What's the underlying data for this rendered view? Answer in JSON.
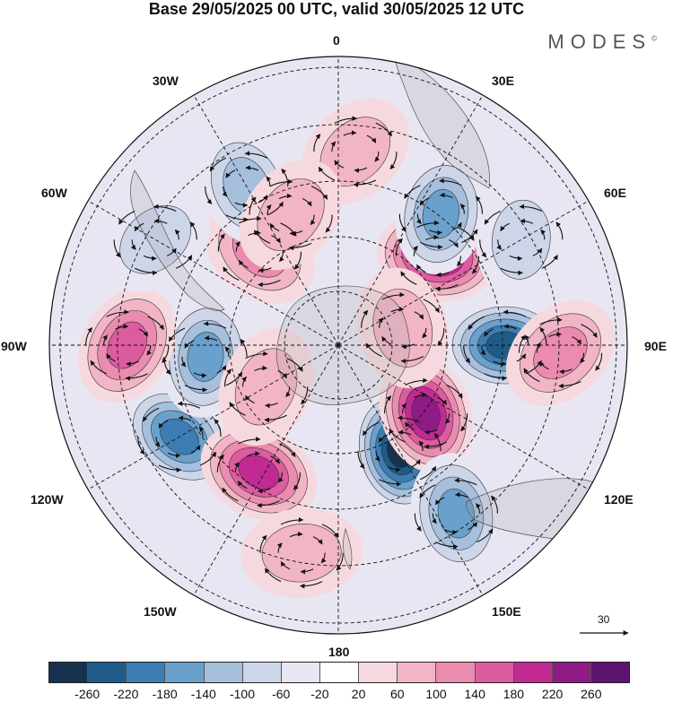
{
  "title": "Base 29/05/2025 00 UTC, valid 30/05/2025 12 UTC",
  "brand": "MODES",
  "brand_mark": "©",
  "longitude_labels": {
    "top": "0",
    "top_right": "30E",
    "right_top": "60E",
    "right": "90E",
    "right_bottom": "120E",
    "bottom_right": "150E",
    "bottom": "180",
    "bottom_left": "150W",
    "left_bottom": "120W",
    "left": "90W",
    "left_top": "60W",
    "top_left": "30W"
  },
  "vector_scale_label": "30",
  "colorbar": {
    "colors": [
      "#17324f",
      "#1f5b88",
      "#3c7db4",
      "#6aa0cc",
      "#a5bfdd",
      "#cdd5e9",
      "#e7e6f2",
      "#ffffff",
      "#f6d9de",
      "#f1b5c6",
      "#eb8bb0",
      "#dd5ca0",
      "#c02a92",
      "#8e1b86",
      "#5b1470"
    ],
    "tick_labels": [
      "-260",
      "-220",
      "-180",
      "-140",
      "-100",
      "-60",
      "-20",
      "20",
      "60",
      "100",
      "140",
      "180",
      "220",
      "260"
    ]
  },
  "field_centers": [
    {
      "lon": 90,
      "colat": 30,
      "value": -230
    },
    {
      "lon": 150,
      "colat": 22,
      "value": -260
    },
    {
      "lon": 128,
      "colat": 20,
      "value": 240
    },
    {
      "lon": 48,
      "colat": 24,
      "value": 220
    },
    {
      "lon": -120,
      "colat": 33,
      "value": -190
    },
    {
      "lon": -148,
      "colat": 27,
      "value": 210
    },
    {
      "lon": -95,
      "colat": 24,
      "value": -170
    },
    {
      "lon": -90,
      "colat": 38,
      "value": 150
    },
    {
      "lon": 92,
      "colat": 40,
      "value": 110
    },
    {
      "lon": 38,
      "colat": 30,
      "value": -150
    },
    {
      "lon": -40,
      "colat": 22,
      "value": 110
    },
    {
      "lon": -30,
      "colat": 33,
      "value": -120
    },
    {
      "lon": 145,
      "colat": 37,
      "value": -170
    },
    {
      "lon": 5,
      "colat": 35,
      "value": 70
    },
    {
      "lon": -20,
      "colat": 25,
      "value": 60
    },
    {
      "lon": -170,
      "colat": 38,
      "value": 90
    },
    {
      "lon": 75,
      "colat": 12,
      "value": 60
    },
    {
      "lon": -60,
      "colat": 38,
      "value": -60
    },
    {
      "lon": 60,
      "colat": 38,
      "value": -80
    },
    {
      "lon": -120,
      "colat": 15,
      "value": 60
    }
  ]
}
